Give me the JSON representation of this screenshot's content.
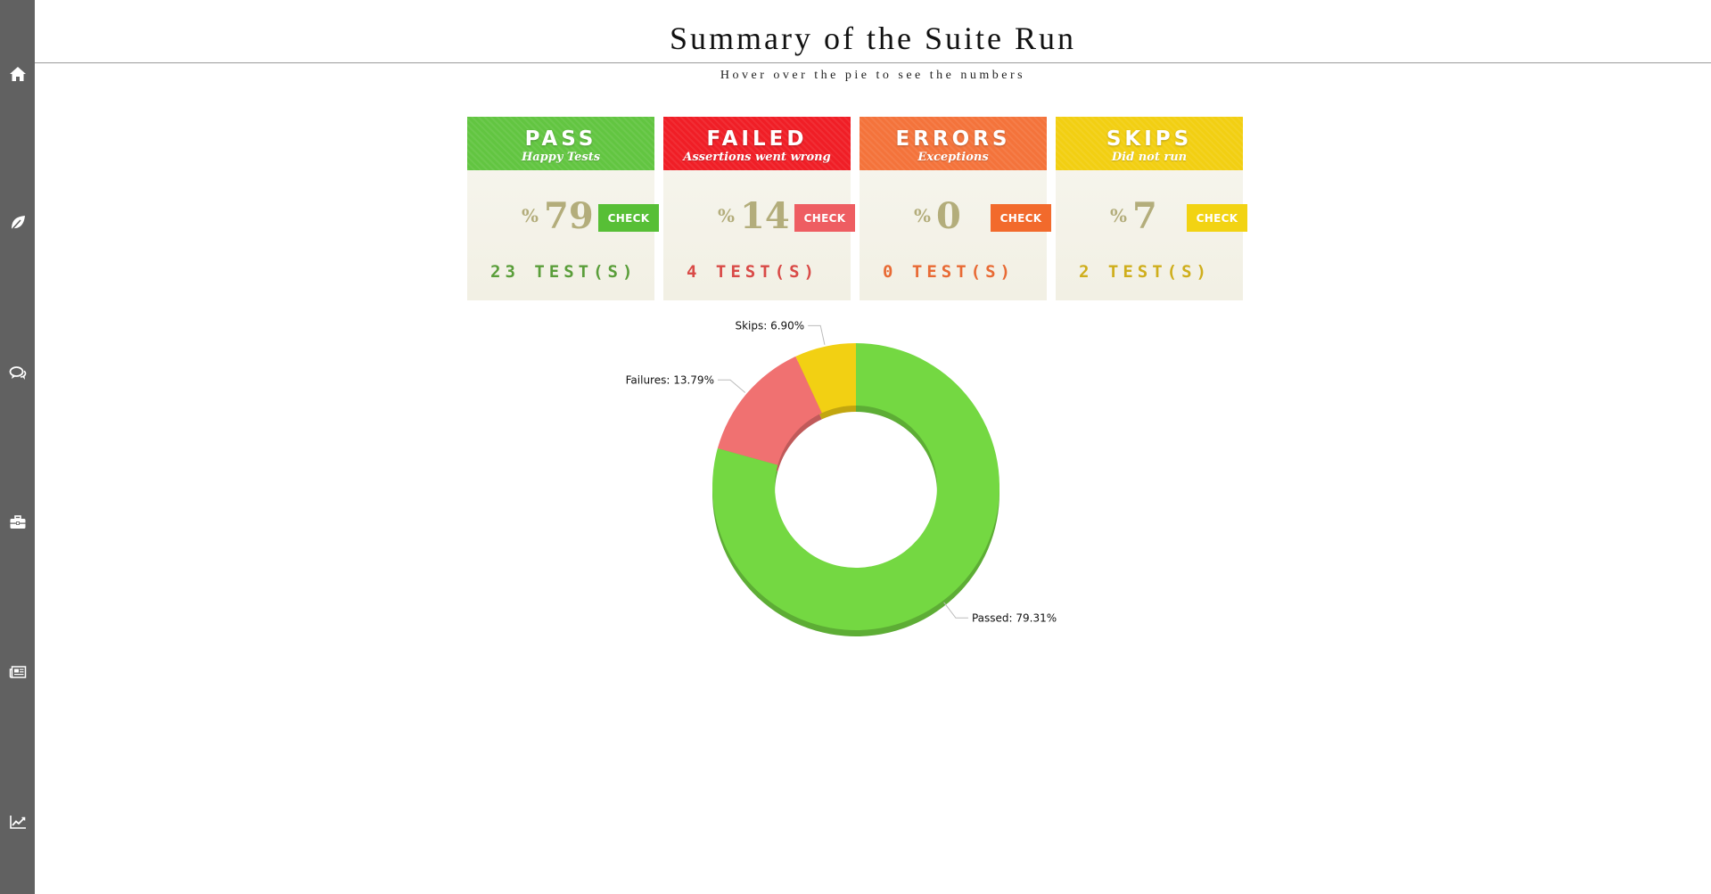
{
  "header": {
    "title": "Summary of the Suite Run",
    "subtitle": "Hover over the pie to see the numbers"
  },
  "sidebar": {
    "items": [
      {
        "icon": "home-icon"
      },
      {
        "icon": "leaf-icon"
      },
      {
        "icon": "comments-icon"
      },
      {
        "icon": "briefcase-icon"
      },
      {
        "icon": "newspaper-icon"
      },
      {
        "icon": "line-chart-icon"
      }
    ]
  },
  "cards": [
    {
      "title": "PASS",
      "subtitle": "Happy Tests",
      "percent_sign": "%",
      "percent": "79",
      "button": "CHECK",
      "tests": "23 TEST(S)",
      "header_color": "#62c541",
      "button_color": "#57bf36",
      "text_color": "#5a9e3a"
    },
    {
      "title": "FAILED",
      "subtitle": "Assertions went wrong",
      "percent_sign": "%",
      "percent": "14",
      "button": "CHECK",
      "tests": "4 TEST(S)",
      "header_color": "#f01e26",
      "button_color": "#ee5d62",
      "text_color": "#d94a47"
    },
    {
      "title": "ERRORS",
      "subtitle": "Exceptions",
      "percent_sign": "%",
      "percent": "0",
      "button": "CHECK",
      "tests": "0 TEST(S)",
      "header_color": "#f4733b",
      "button_color": "#f26a2c",
      "text_color": "#e86a34"
    },
    {
      "title": "SKIPS",
      "subtitle": "Did not run",
      "percent_sign": "%",
      "percent": "7",
      "button": "CHECK",
      "tests": "2 TEST(S)",
      "header_color": "#f2cf12",
      "button_color": "#f2d313",
      "text_color": "#cfae1c"
    }
  ],
  "chart_data": {
    "type": "pie",
    "donut": true,
    "slices": [
      {
        "label": "Passed",
        "percent": 79.31,
        "display": "Passed: 79.31%",
        "color": "#74d842"
      },
      {
        "label": "Failures",
        "percent": 13.79,
        "display": "Failures: 13.79%",
        "color": "#f07171"
      },
      {
        "label": "Skips",
        "percent": 6.9,
        "display": "Skips: 6.90%",
        "color": "#f2d013"
      }
    ]
  }
}
